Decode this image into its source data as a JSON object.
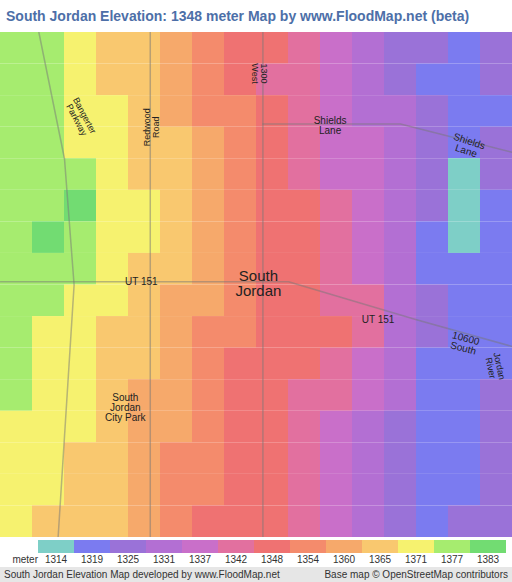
{
  "chart_data": {
    "type": "heatmap",
    "title": "South Jordan Elevation: 1348 meter Map by www.FloodMap.net (beta)",
    "tick_labels": false,
    "cells": [
      [
        1377,
        1377,
        1371,
        1365,
        1365,
        1360,
        1354,
        1348,
        1348,
        1342,
        1337,
        1331,
        1325,
        1325,
        1319,
        1325
      ],
      [
        1377,
        1377,
        1371,
        1365,
        1365,
        1360,
        1354,
        1348,
        1342,
        1342,
        1337,
        1331,
        1325,
        1319,
        1319,
        1325
      ],
      [
        1377,
        1377,
        1371,
        1371,
        1365,
        1360,
        1354,
        1354,
        1348,
        1342,
        1337,
        1331,
        1331,
        1325,
        1319,
        1319
      ],
      [
        1377,
        1377,
        1371,
        1371,
        1365,
        1365,
        1360,
        1354,
        1348,
        1342,
        1337,
        1337,
        1331,
        1325,
        1319,
        1325
      ],
      [
        1377,
        1377,
        1377,
        1371,
        1365,
        1365,
        1360,
        1354,
        1348,
        1342,
        1337,
        1337,
        1331,
        1325,
        1314,
        1325
      ],
      [
        1377,
        1377,
        1383,
        1371,
        1371,
        1365,
        1360,
        1354,
        1348,
        1348,
        1342,
        1337,
        1331,
        1325,
        1314,
        1319
      ],
      [
        1377,
        1383,
        1377,
        1371,
        1371,
        1365,
        1360,
        1354,
        1348,
        1348,
        1342,
        1337,
        1331,
        1319,
        1314,
        1319
      ],
      [
        1377,
        1377,
        1377,
        1371,
        1365,
        1365,
        1360,
        1354,
        1348,
        1348,
        1342,
        1337,
        1331,
        1319,
        1319,
        1319
      ],
      [
        1377,
        1377,
        1371,
        1371,
        1365,
        1360,
        1360,
        1354,
        1348,
        1348,
        1342,
        1342,
        1331,
        1325,
        1319,
        1319
      ],
      [
        1377,
        1371,
        1371,
        1365,
        1365,
        1360,
        1354,
        1354,
        1348,
        1348,
        1348,
        1342,
        1331,
        1325,
        1319,
        1319
      ],
      [
        1377,
        1371,
        1371,
        1365,
        1365,
        1360,
        1354,
        1348,
        1348,
        1348,
        1342,
        1337,
        1331,
        1319,
        1319,
        1319
      ],
      [
        1377,
        1371,
        1371,
        1365,
        1360,
        1360,
        1354,
        1348,
        1348,
        1342,
        1342,
        1337,
        1331,
        1319,
        1319,
        1325
      ],
      [
        1371,
        1371,
        1371,
        1365,
        1360,
        1360,
        1354,
        1348,
        1348,
        1342,
        1337,
        1331,
        1325,
        1319,
        1319,
        1325
      ],
      [
        1371,
        1371,
        1365,
        1365,
        1360,
        1354,
        1354,
        1348,
        1348,
        1342,
        1337,
        1331,
        1325,
        1319,
        1319,
        1325
      ],
      [
        1371,
        1371,
        1365,
        1365,
        1360,
        1354,
        1354,
        1348,
        1348,
        1342,
        1337,
        1331,
        1325,
        1319,
        1319,
        1325
      ],
      [
        1371,
        1365,
        1365,
        1365,
        1360,
        1354,
        1348,
        1348,
        1348,
        1342,
        1337,
        1331,
        1325,
        1319,
        1325,
        1325
      ]
    ],
    "color_bar": {
      "label": "meter",
      "values": [
        1314,
        1319,
        1325,
        1331,
        1337,
        1342,
        1348,
        1354,
        1360,
        1365,
        1371,
        1377,
        1383
      ],
      "colors": [
        "#7ecfc7",
        "#7b7bf0",
        "#9a72d8",
        "#b36fd3",
        "#c96fc9",
        "#e2709f",
        "#ef7272",
        "#f48b6c",
        "#f6a96b",
        "#f9c86f",
        "#f6f26f",
        "#a6ec6f",
        "#72dc72"
      ]
    },
    "annotations": [
      "Shields Lane",
      "Shields Lane",
      "South Jordan",
      "UT 151",
      "UT 151",
      "10600 South",
      "Redwood Road",
      "1300 West",
      "South Jordan City Park",
      "Jordan River",
      "Bangerter Parkway"
    ],
    "caption": "South Jordan Elevation Map developed by www.FloodMap.net",
    "source": "Base map © OpenStreetMap contributors"
  }
}
